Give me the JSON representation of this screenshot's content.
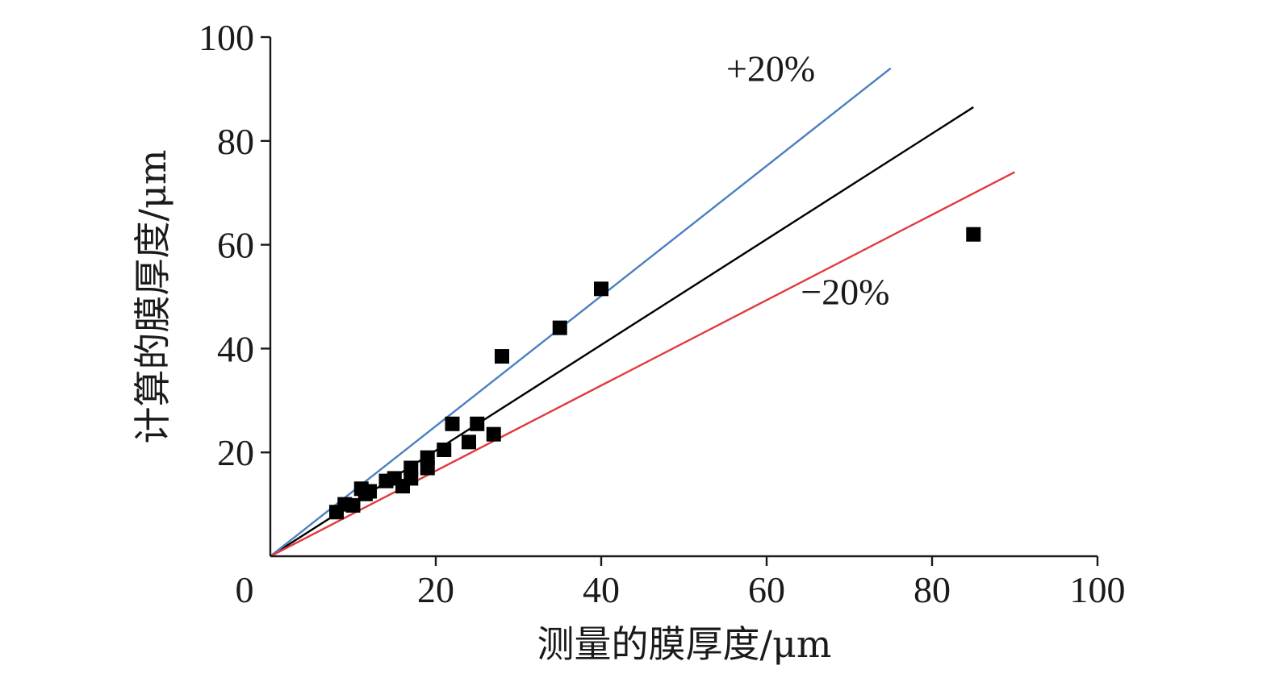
{
  "chart_data": {
    "type": "scatter",
    "xlabel": "测量的膜厚度/μm",
    "ylabel": "计算的膜厚度/μm",
    "xlim": [
      0,
      100
    ],
    "ylim": [
      0,
      100
    ],
    "x_ticks": [
      0,
      20,
      40,
      60,
      80,
      100
    ],
    "y_ticks": [
      20,
      40,
      60,
      80,
      100
    ],
    "grid": false,
    "series": [
      {
        "type": "scatter",
        "color": "#000000",
        "marker": "square",
        "points": [
          [
            8,
            8.5
          ],
          [
            9,
            10
          ],
          [
            10,
            9.8
          ],
          [
            11,
            13
          ],
          [
            11.5,
            12
          ],
          [
            12,
            12.5
          ],
          [
            14,
            14.5
          ],
          [
            15,
            15
          ],
          [
            16,
            13.5
          ],
          [
            17,
            15
          ],
          [
            17,
            17
          ],
          [
            19,
            17
          ],
          [
            19,
            19
          ],
          [
            21,
            20.5
          ],
          [
            22,
            25.5
          ],
          [
            24,
            22
          ],
          [
            25,
            25.5
          ],
          [
            27,
            23.5
          ],
          [
            28,
            38.5
          ],
          [
            35,
            44
          ],
          [
            40,
            51.5
          ],
          [
            85,
            62
          ]
        ]
      },
      {
        "type": "line",
        "color": "#000000",
        "points": [
          [
            0,
            0
          ],
          [
            85,
            86.5
          ]
        ]
      },
      {
        "type": "line",
        "color": "#4a7fc1",
        "points": [
          [
            0,
            0
          ],
          [
            75,
            94
          ]
        ]
      },
      {
        "type": "line",
        "color": "#e03a3e",
        "points": [
          [
            0,
            0
          ],
          [
            90,
            74
          ]
        ]
      }
    ],
    "annotations": [
      {
        "text": "+20%",
        "x": 60.5,
        "y": 91.5
      },
      {
        "text": "−20%",
        "x": 69.5,
        "y": 48.5
      }
    ]
  }
}
